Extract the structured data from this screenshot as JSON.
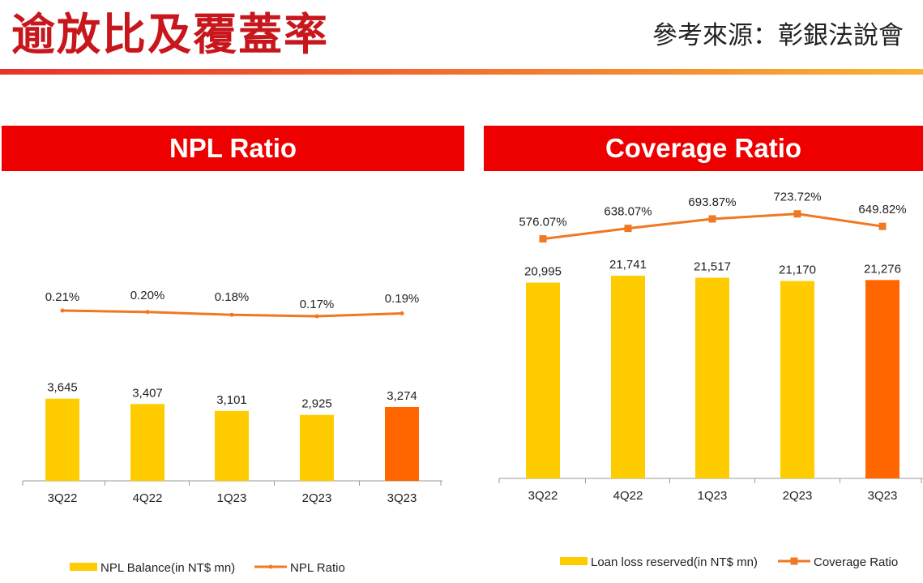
{
  "page": {
    "title": "逾放比及覆蓋率",
    "source": "參考來源：彰銀法說會"
  },
  "colors": {
    "title": "#c8161d",
    "header_bg": "#ee0000",
    "bar": "#ffcc00",
    "bar_highlight": "#ff6600",
    "line": "#f07822"
  },
  "chart_data": [
    {
      "type": "bar",
      "title": "NPL Ratio",
      "categories": [
        "3Q22",
        "4Q22",
        "1Q23",
        "2Q23",
        "3Q23"
      ],
      "series": [
        {
          "name": "NPL Balance(in NT$ mn)",
          "kind": "bar",
          "values": [
            3645,
            3407,
            3101,
            2925,
            3274
          ],
          "labels": [
            "3,645",
            "3,407",
            "3,101",
            "2,925",
            "3,274"
          ]
        },
        {
          "name": "NPL Ratio",
          "kind": "line",
          "values": [
            0.21,
            0.2,
            0.18,
            0.17,
            0.19
          ],
          "labels": [
            "0.21%",
            "0.20%",
            "0.18%",
            "0.17%",
            "0.19%"
          ]
        }
      ],
      "legend": "bottom"
    },
    {
      "type": "bar",
      "title": "Coverage Ratio",
      "categories": [
        "3Q22",
        "4Q22",
        "1Q23",
        "2Q23",
        "3Q23"
      ],
      "series": [
        {
          "name": "Loan loss reserved(in NT$ mn)",
          "kind": "bar",
          "values": [
            20995,
            21741,
            21517,
            21170,
            21276
          ],
          "labels": [
            "20,995",
            "21,741",
            "21,517",
            "21,170",
            "21,276"
          ]
        },
        {
          "name": "Coverage Ratio",
          "kind": "line",
          "values": [
            576.07,
            638.07,
            693.87,
            723.72,
            649.82
          ],
          "labels": [
            "576.07%",
            "638.07%",
            "693.87%",
            "723.72%",
            "649.82%"
          ]
        }
      ],
      "legend": "bottom"
    }
  ]
}
